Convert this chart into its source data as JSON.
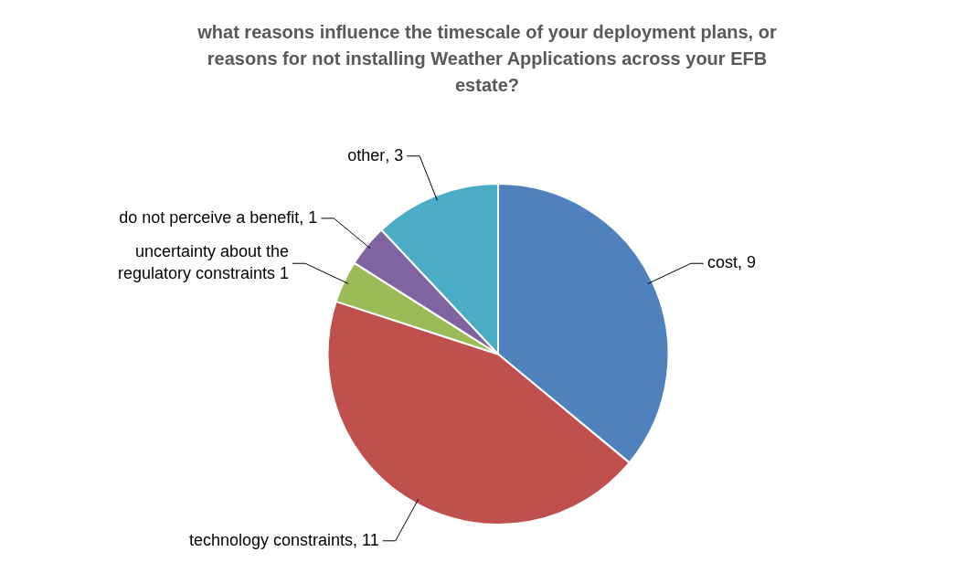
{
  "chart_data": {
    "type": "pie",
    "title": "what reasons influence the timescale of your deployment plans, or reasons for not installing Weather Applications across your EFB estate?",
    "categories": [
      "cost",
      "technology constraints",
      "uncertainty about the regulatory constraints",
      "do not perceive a benefit",
      "other"
    ],
    "values": [
      9,
      11,
      1,
      1,
      3
    ],
    "colors": [
      "#4f81bd",
      "#c0504d",
      "#9bbb59",
      "#8064a2",
      "#4bacc6"
    ],
    "value_labels": [
      ", 9",
      ", 11",
      "1",
      ", 1",
      ", 3"
    ],
    "legend": false
  }
}
